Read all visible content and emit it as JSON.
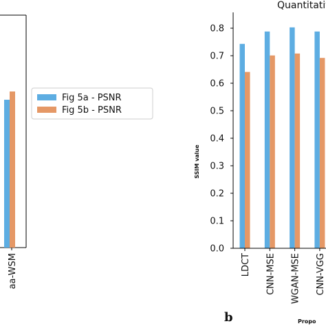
{
  "panel_left": {
    "tick_label": "aa-WSM"
  },
  "legend": {
    "items": [
      {
        "label": "Fig 5a - PSNR",
        "color": "#5DADE2"
      },
      {
        "label": "Fig 5b - PSNR",
        "color": "#E59866"
      }
    ]
  },
  "panel_letter": "b",
  "chart_data": [
    {
      "type": "bar",
      "title": "Quantitative",
      "xlabel": "Propo",
      "ylabel": "SSIM value",
      "ylim": [
        0.0,
        0.8
      ],
      "yticks": [
        "0.0",
        "0.1",
        "0.2",
        "0.3",
        "0.4",
        "0.5",
        "0.6",
        "0.7",
        "0.8"
      ],
      "categories": [
        "LDCT",
        "CNN-MSE",
        "WGAN-MSE",
        "CNN-VGG"
      ],
      "series": [
        {
          "values": [
            0.743,
            0.788,
            0.803,
            0.788
          ],
          "color": "#5DADE2"
        },
        {
          "values": [
            0.641,
            0.701,
            0.708,
            0.692
          ],
          "color": "#E59866"
        }
      ],
      "grid": false
    }
  ]
}
